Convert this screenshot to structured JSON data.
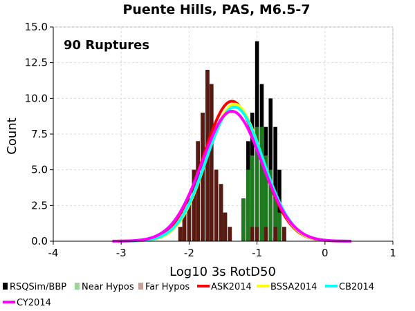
{
  "chart_data": {
    "type": "bar",
    "title": "Puente Hills, PAS, M6.5-7",
    "xlabel": "Log10 3s RotD50",
    "ylabel": "Count",
    "annotation": "90 Ruptures",
    "xlim": [
      -4,
      1
    ],
    "ylim": [
      0,
      15
    ],
    "xticks": [
      {
        "v": -4,
        "label": "-4"
      },
      {
        "v": -3,
        "label": "-3"
      },
      {
        "v": -2,
        "label": "-2"
      },
      {
        "v": -1,
        "label": "-1"
      },
      {
        "v": 0,
        "label": "0"
      },
      {
        "v": 1,
        "label": "1"
      }
    ],
    "yticks": [
      {
        "v": 0,
        "label": "0.0"
      },
      {
        "v": 2.5,
        "label": "2.5"
      },
      {
        "v": 5,
        "label": "5.0"
      },
      {
        "v": 7.5,
        "label": "7.5"
      },
      {
        "v": 10,
        "label": "10.0"
      },
      {
        "v": 12.5,
        "label": "12.5"
      },
      {
        "v": 15,
        "label": "15.0"
      }
    ],
    "grid": true,
    "legend_position": "bottom",
    "bin_width": 0.0667,
    "histograms": [
      {
        "name": "RSQSim/BBP",
        "color": "#000000",
        "bins": [
          [
            -2.13,
            1
          ],
          [
            -2.07,
            2
          ],
          [
            -2.0,
            3
          ],
          [
            -1.93,
            5
          ],
          [
            -1.87,
            7
          ],
          [
            -1.8,
            9
          ],
          [
            -1.73,
            12
          ],
          [
            -1.67,
            11
          ],
          [
            -1.6,
            5
          ],
          [
            -1.53,
            4
          ],
          [
            -1.47,
            2
          ],
          [
            -1.4,
            1
          ],
          [
            -1.33,
            0
          ],
          [
            -1.27,
            0
          ],
          [
            -1.2,
            3
          ],
          [
            -1.13,
            7
          ],
          [
            -1.07,
            9
          ],
          [
            -1.0,
            14
          ],
          [
            -0.93,
            11
          ],
          [
            -0.87,
            8
          ],
          [
            -0.8,
            10
          ],
          [
            -0.73,
            8
          ],
          [
            -0.67,
            5
          ],
          [
            -0.6,
            1
          ]
        ]
      },
      {
        "name": "Near Hypos",
        "color": "#1e7a1e",
        "bins": [
          [
            -1.2,
            3
          ],
          [
            -1.13,
            5
          ],
          [
            -1.07,
            6
          ],
          [
            -1.0,
            8
          ],
          [
            -0.93,
            8
          ],
          [
            -0.87,
            6
          ],
          [
            -0.8,
            5
          ],
          [
            -0.73,
            3
          ],
          [
            -0.67,
            2
          ],
          [
            -0.6,
            1
          ]
        ]
      },
      {
        "name": "Far Hypos",
        "color": "#5a1a12",
        "bins": [
          [
            -2.13,
            1
          ],
          [
            -2.07,
            2
          ],
          [
            -2.0,
            3
          ],
          [
            -1.93,
            5
          ],
          [
            -1.87,
            7
          ],
          [
            -1.8,
            9
          ],
          [
            -1.73,
            12
          ],
          [
            -1.67,
            11
          ],
          [
            -1.6,
            5
          ],
          [
            -1.53,
            4
          ],
          [
            -1.47,
            2
          ],
          [
            -1.4,
            1
          ],
          [
            -1.07,
            1
          ],
          [
            -1.0,
            1
          ],
          [
            -0.87,
            1
          ],
          [
            -0.73,
            1
          ],
          [
            -0.6,
            1
          ]
        ]
      }
    ],
    "curves": [
      {
        "name": "ASK2014",
        "color": "#ff0000",
        "mean": -1.37,
        "sigma": 0.42,
        "peak": 9.8
      },
      {
        "name": "BSSA2014",
        "color": "#ffff00",
        "mean": -1.33,
        "sigma": 0.41,
        "peak": 9.6
      },
      {
        "name": "CB2014",
        "color": "#00ffff",
        "mean": -1.33,
        "sigma": 0.42,
        "peak": 9.4
      },
      {
        "name": "CY2014",
        "color": "#ff00ff",
        "mean": -1.37,
        "sigma": 0.44,
        "peak": 9.1
      }
    ],
    "legend": [
      {
        "label": "RSQSim/BBP",
        "color": "#000000",
        "kind": "box"
      },
      {
        "label": "Near Hypos",
        "color": "#9bd39b",
        "kind": "box"
      },
      {
        "label": "Far Hypos",
        "color": "#c8a09a",
        "kind": "box"
      },
      {
        "label": "ASK2014",
        "color": "#ff0000",
        "kind": "line"
      },
      {
        "label": "BSSA2014",
        "color": "#ffff00",
        "kind": "line"
      },
      {
        "label": "CB2014",
        "color": "#00ffff",
        "kind": "line"
      },
      {
        "label": "CY2014",
        "color": "#ff00ff",
        "kind": "line"
      }
    ]
  }
}
